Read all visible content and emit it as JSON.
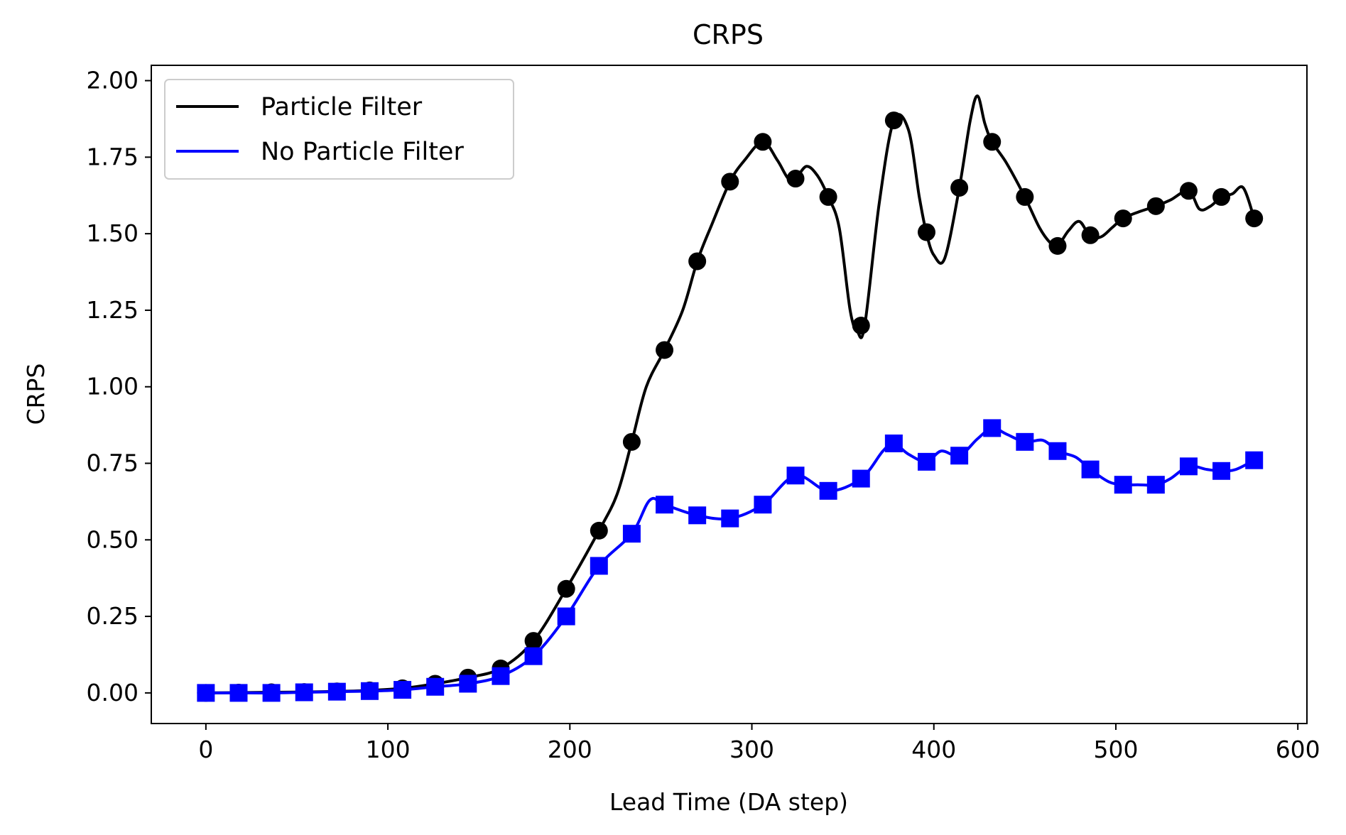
{
  "chart_data": {
    "type": "line",
    "title": "CRPS",
    "xlabel": "Lead Time (DA step)",
    "ylabel": "CRPS",
    "xlim": [
      -30,
      605
    ],
    "ylim": [
      -0.1,
      2.05
    ],
    "xticks": [
      "0",
      "100",
      "200",
      "300",
      "400",
      "500",
      "600"
    ],
    "yticks": [
      "0.00",
      "0.25",
      "0.50",
      "0.75",
      "1.00",
      "1.25",
      "1.50",
      "1.75",
      "2.00"
    ],
    "grid": false,
    "legend_position": "top-left",
    "series": [
      {
        "name": "Particle Filter",
        "color": "#000000",
        "marker": "circle",
        "line_x": [
          0,
          18,
          36,
          54,
          72,
          90,
          108,
          126,
          144,
          162,
          180,
          198,
          216,
          226,
          234,
          242,
          252,
          262,
          270,
          278,
          288,
          296,
          306,
          314,
          320,
          324,
          330,
          336,
          342,
          348,
          354,
          358,
          362,
          370,
          378,
          386,
          392,
          396,
          400,
          406,
          414,
          420,
          424,
          428,
          432,
          440,
          450,
          458,
          464,
          468,
          474,
          480,
          486,
          492,
          498,
          504,
          512,
          522,
          530,
          540,
          546,
          552,
          558,
          564,
          570,
          576
        ],
        "line_y": [
          0.0,
          0.001,
          0.002,
          0.003,
          0.005,
          0.008,
          0.015,
          0.03,
          0.05,
          0.08,
          0.17,
          0.34,
          0.53,
          0.65,
          0.82,
          1.0,
          1.12,
          1.25,
          1.41,
          1.53,
          1.67,
          1.74,
          1.8,
          1.74,
          1.68,
          1.68,
          1.72,
          1.69,
          1.62,
          1.52,
          1.25,
          1.18,
          1.2,
          1.6,
          1.87,
          1.84,
          1.62,
          1.5,
          1.43,
          1.42,
          1.65,
          1.87,
          1.95,
          1.86,
          1.8,
          1.73,
          1.62,
          1.52,
          1.47,
          1.46,
          1.51,
          1.54,
          1.49,
          1.49,
          1.52,
          1.55,
          1.57,
          1.59,
          1.61,
          1.64,
          1.58,
          1.59,
          1.62,
          1.63,
          1.65,
          1.55
        ],
        "marker_x": [
          0,
          18,
          36,
          54,
          72,
          90,
          108,
          126,
          144,
          162,
          180,
          198,
          216,
          234,
          252,
          270,
          288,
          306,
          324,
          342,
          360,
          378,
          396,
          414,
          432,
          450,
          468,
          486,
          504,
          522,
          540,
          558,
          576
        ],
        "marker_y": [
          0.0,
          0.001,
          0.002,
          0.003,
          0.005,
          0.008,
          0.015,
          0.03,
          0.05,
          0.08,
          0.17,
          0.34,
          0.53,
          0.82,
          1.12,
          1.41,
          1.67,
          1.8,
          1.68,
          1.62,
          1.2,
          1.87,
          1.505,
          1.65,
          1.8,
          1.62,
          1.46,
          1.495,
          1.55,
          1.59,
          1.64,
          1.62,
          1.55
        ]
      },
      {
        "name": "No Particle Filter",
        "color": "#0000ff",
        "marker": "square",
        "line_x": [
          0,
          18,
          36,
          54,
          72,
          90,
          108,
          126,
          144,
          162,
          180,
          198,
          216,
          234,
          244,
          252,
          270,
          288,
          306,
          324,
          342,
          360,
          372,
          378,
          386,
          396,
          404,
          414,
          424,
          432,
          440,
          450,
          460,
          468,
          478,
          486,
          496,
          504,
          512,
          522,
          530,
          540,
          550,
          558,
          566,
          576
        ],
        "line_y": [
          0.0,
          0.0,
          0.0,
          0.002,
          0.004,
          0.006,
          0.01,
          0.02,
          0.03,
          0.055,
          0.12,
          0.25,
          0.415,
          0.52,
          0.63,
          0.615,
          0.58,
          0.57,
          0.615,
          0.71,
          0.66,
          0.7,
          0.79,
          0.815,
          0.78,
          0.755,
          0.79,
          0.775,
          0.83,
          0.865,
          0.845,
          0.82,
          0.825,
          0.79,
          0.77,
          0.73,
          0.69,
          0.68,
          0.68,
          0.68,
          0.7,
          0.74,
          0.73,
          0.725,
          0.73,
          0.76
        ],
        "marker_x": [
          0,
          18,
          36,
          54,
          72,
          90,
          108,
          126,
          144,
          162,
          180,
          198,
          216,
          234,
          252,
          270,
          288,
          306,
          324,
          342,
          360,
          378,
          396,
          414,
          432,
          450,
          468,
          486,
          504,
          522,
          540,
          558,
          576
        ],
        "marker_y": [
          0.0,
          0.0,
          0.0,
          0.002,
          0.004,
          0.006,
          0.01,
          0.02,
          0.03,
          0.055,
          0.12,
          0.25,
          0.415,
          0.52,
          0.615,
          0.58,
          0.57,
          0.615,
          0.71,
          0.66,
          0.7,
          0.815,
          0.755,
          0.775,
          0.865,
          0.82,
          0.79,
          0.73,
          0.68,
          0.68,
          0.74,
          0.725,
          0.76
        ]
      }
    ]
  }
}
